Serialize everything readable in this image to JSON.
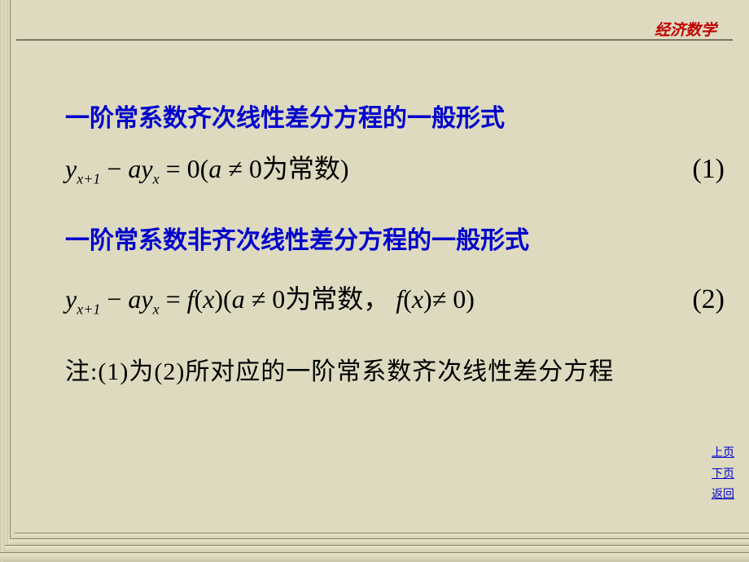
{
  "colors": {
    "background": "#dddac0",
    "header_text": "#c00000",
    "heading_text": "#0000cc",
    "body_text": "#000000",
    "nav_text": "#0000cc",
    "rule": "#7a7560"
  },
  "typography": {
    "header_fontsize": 19,
    "heading_fontsize": 30,
    "equation_fontsize": 32,
    "note_fontsize": 30,
    "nav_fontsize": 14
  },
  "header": {
    "label": "经济数学"
  },
  "section1": {
    "heading": "一阶常系数齐次线性差分方程的一般形式",
    "eq_lhs_y": "y",
    "eq_sub1": "x+1",
    "eq_minus": " − ",
    "eq_a": "a",
    "eq_y2": "y",
    "eq_sub2": "x",
    "eq_eq": " = ",
    "eq_zero": "0(",
    "eq_a2": "a",
    "eq_neq": " ≠ 0",
    "eq_cn": "为常数",
    "eq_close": ")",
    "eq_num": "(1)"
  },
  "section2": {
    "heading": "一阶常系数非齐次线性差分方程的一般形式",
    "eq_lhs_y": "y",
    "eq_sub1": "x+1",
    "eq_minus": " − ",
    "eq_a": "a",
    "eq_y2": "y",
    "eq_sub2": "x",
    "eq_eq": " = ",
    "eq_f": "f",
    "eq_open": "(",
    "eq_x": "x",
    "eq_close1": ")(",
    "eq_a2": "a",
    "eq_neq": " ≠ 0",
    "eq_cn1": "为常数",
    "eq_comma": "，",
    "eq_f2": "f",
    "eq_open2": "(",
    "eq_x2": "x",
    "eq_close2": ")",
    "eq_neq2": "≠ 0)",
    "eq_num": "(2)"
  },
  "note": {
    "prefix": "注:",
    "n1": "(1)",
    "mid1": "为",
    "n2": "(2)",
    "text": "所对应的一阶常系数齐次线性差分方程"
  },
  "nav": {
    "prev": "上页",
    "next": "下页",
    "back": "返回"
  }
}
